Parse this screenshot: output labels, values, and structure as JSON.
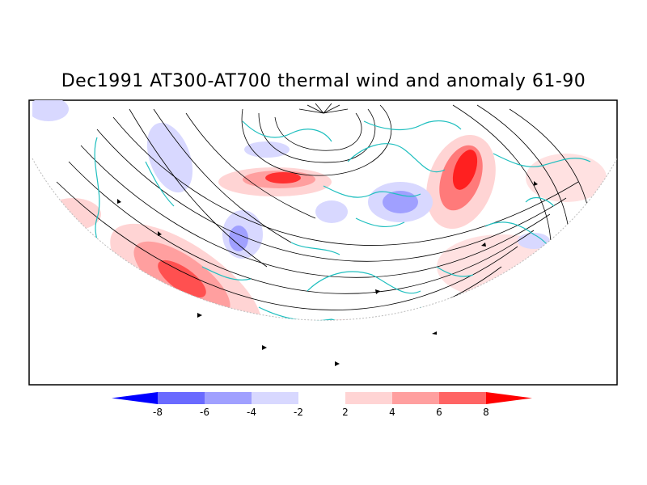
{
  "title": "Dec1991 AT300-AT700 thermal wind and anomaly 61-90",
  "colorbar": {
    "labels": [
      "-8",
      "-6",
      "-4",
      "-2",
      "2",
      "4",
      "6",
      "8"
    ],
    "colors": [
      "#0000ff",
      "#6a6aff",
      "#a0a0ff",
      "#d8d8ff",
      "#ffffff",
      "#ffd4d4",
      "#ff9f9f",
      "#ff6464",
      "#ff0000"
    ]
  },
  "colors": {
    "coastline": "#1fbfbf",
    "streamline": "#000000",
    "frame": "#000000"
  }
}
